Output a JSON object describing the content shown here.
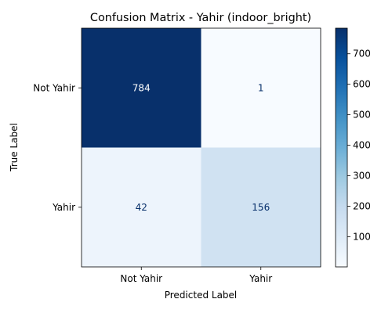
{
  "chart_data": {
    "type": "heatmap",
    "title": "Confusion Matrix - Yahir (indoor_bright)",
    "xlabel": "Predicted Label",
    "ylabel": "True Label",
    "x_categories": [
      "Not Yahir",
      "Yahir"
    ],
    "y_categories": [
      "Not Yahir",
      "Yahir"
    ],
    "values": [
      [
        784,
        1
      ],
      [
        42,
        156
      ]
    ],
    "colormap": "Blues",
    "colorbar": {
      "min": 1,
      "max": 784,
      "ticks": [
        "100",
        "200",
        "300",
        "400",
        "500",
        "600",
        "700"
      ]
    },
    "grid": false
  }
}
